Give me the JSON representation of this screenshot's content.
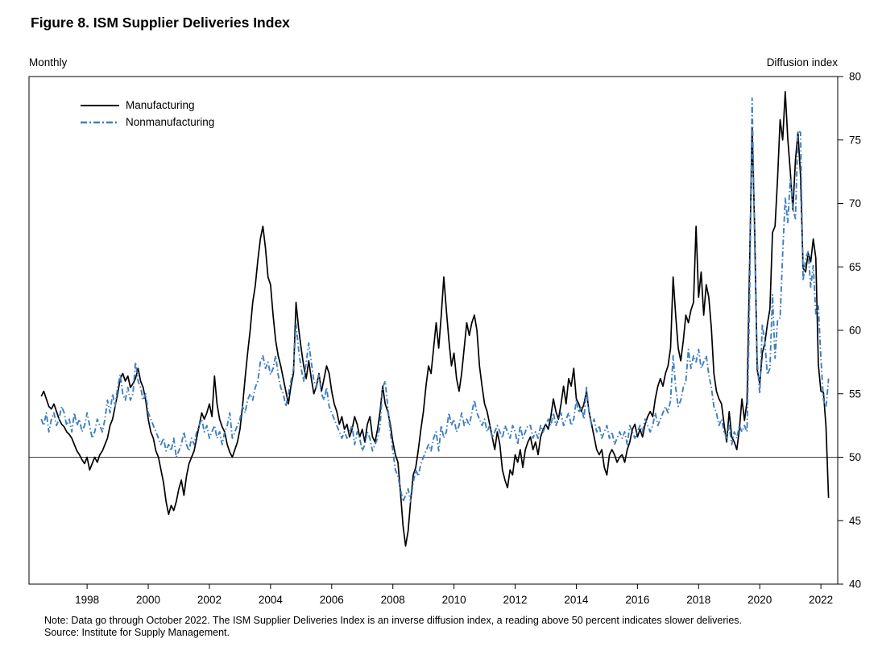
{
  "page": {
    "title": "Figure 8. ISM Supplier Deliveries Index",
    "frequency_label": "Monthly",
    "unit_label": "Diffusion index",
    "note": "Note: Data go through October 2022. The ISM Supplier Deliveries Index is an inverse diffusion index, a reading above 50 percent indicates slower deliveries.",
    "source": "Source: Institute for Supply Management."
  },
  "legend": {
    "manufacturing": "Manufacturing",
    "nonmanufacturing": "Nonmanufacturing"
  },
  "colors": {
    "manufacturing": "#000000",
    "nonmanufacturing": "#3f7fbf",
    "reference_line": "#000000",
    "axis": "#000000"
  },
  "chart_data": {
    "type": "line",
    "title": "Figure 8. ISM Supplier Deliveries Index",
    "frequency": "Monthly",
    "ylabel": "Diffusion index",
    "ylim": [
      40,
      80
    ],
    "y_ticks": [
      40,
      45,
      50,
      55,
      60,
      65,
      70,
      75,
      80
    ],
    "reference_line_y": 50,
    "grid": false,
    "legend_position": "top-left",
    "x_start": {
      "year": 1997,
      "month": 1
    },
    "x_end": {
      "year": 2022,
      "month": 10
    },
    "x_tick_labels": [
      "1998",
      "2000",
      "2002",
      "2004",
      "2006",
      "2008",
      "2010",
      "2012",
      "2014",
      "2016",
      "2018",
      "2020",
      "2022"
    ],
    "series": [
      {
        "name": "Manufacturing",
        "style": "solid",
        "color": "#000000",
        "values": [
          54.8,
          55.2,
          54.6,
          54.0,
          53.8,
          54.2,
          53.6,
          53.0,
          52.6,
          52.4,
          52.0,
          51.8,
          51.5,
          51.0,
          50.5,
          50.2,
          49.8,
          49.5,
          50.0,
          49.0,
          49.5,
          50.0,
          49.6,
          50.2,
          50.5,
          51.0,
          51.5,
          52.5,
          53.0,
          54.0,
          55.0,
          56.2,
          56.6,
          56.0,
          56.4,
          55.5,
          55.8,
          56.2,
          57.0,
          56.0,
          55.5,
          54.5,
          53.0,
          52.0,
          51.5,
          50.5,
          50.0,
          49.0,
          48.0,
          46.5,
          45.5,
          46.2,
          45.8,
          46.5,
          47.5,
          48.2,
          47.0,
          48.5,
          49.5,
          50.0,
          50.5,
          51.5,
          52.5,
          53.5,
          53.0,
          53.5,
          54.2,
          53.2,
          56.4,
          54.2,
          53.0,
          52.4,
          52.0,
          51.0,
          50.4,
          50.0,
          50.6,
          51.2,
          52.2,
          54.0,
          56.2,
          58.2,
          60.0,
          62.2,
          63.5,
          65.5,
          67.2,
          68.2,
          66.5,
          64.2,
          63.6,
          61.2,
          59.2,
          58.0,
          57.2,
          56.2,
          55.2,
          54.2,
          55.6,
          56.6,
          62.2,
          60.2,
          58.6,
          57.2,
          56.2,
          57.6,
          56.2,
          55.0,
          55.6,
          56.6,
          55.2,
          56.2,
          57.2,
          56.6,
          55.2,
          54.2,
          53.6,
          52.6,
          53.2,
          52.2,
          52.6,
          51.6,
          52.2,
          53.2,
          52.6,
          51.6,
          52.2,
          51.2,
          52.6,
          53.2,
          51.6,
          51.2,
          52.2,
          53.6,
          55.6,
          54.2,
          53.6,
          52.6,
          51.2,
          50.2,
          49.6,
          47.2,
          44.6,
          43.0,
          44.2,
          46.6,
          48.6,
          49.2,
          50.6,
          52.2,
          53.6,
          55.6,
          57.2,
          56.6,
          58.6,
          60.6,
          58.6,
          61.2,
          64.2,
          61.6,
          59.2,
          57.2,
          58.2,
          56.2,
          55.2,
          56.6,
          58.6,
          60.6,
          59.6,
          60.6,
          61.2,
          60.0,
          57.2,
          55.6,
          54.2,
          53.6,
          52.6,
          51.6,
          50.6,
          52.0,
          51.0,
          49.0,
          48.2,
          47.6,
          49.0,
          48.6,
          50.2,
          49.6,
          50.6,
          49.2,
          50.6,
          51.2,
          51.6,
          50.6,
          51.2,
          50.2,
          51.6,
          52.2,
          52.6,
          52.2,
          53.2,
          54.6,
          53.6,
          53.0,
          54.2,
          55.6,
          54.2,
          56.2,
          55.6,
          57.0,
          54.6,
          54.2,
          53.6,
          54.2,
          55.2,
          53.6,
          52.6,
          51.6,
          50.6,
          50.2,
          50.6,
          49.2,
          48.6,
          50.2,
          50.6,
          50.2,
          49.6,
          50.0,
          50.2,
          49.6,
          50.6,
          51.2,
          52.2,
          52.6,
          51.6,
          52.2,
          51.6,
          52.6,
          53.2,
          53.6,
          53.2,
          54.6,
          55.6,
          56.2,
          55.6,
          56.6,
          57.2,
          58.6,
          64.2,
          61.2,
          58.6,
          57.6,
          59.2,
          61.2,
          60.6,
          61.6,
          62.2,
          68.2,
          62.6,
          64.6,
          61.2,
          63.6,
          62.6,
          60.2,
          56.6,
          55.2,
          54.6,
          54.2,
          52.6,
          51.2,
          53.6,
          51.6,
          51.2,
          50.6,
          52.2,
          54.6,
          52.9,
          54.4,
          65.0,
          76.0,
          68.0,
          56.9,
          55.8,
          58.2,
          59.0,
          60.5,
          61.7,
          67.7,
          68.2,
          72.0,
          76.6,
          75.0,
          78.8,
          75.1,
          72.5,
          69.5,
          73.4,
          75.6,
          72.2,
          64.9,
          64.6,
          66.1,
          65.4,
          67.2,
          65.7,
          57.3,
          55.2,
          55.1,
          52.4,
          46.8
        ]
      },
      {
        "name": "Nonmanufacturing",
        "style": "dash-dot",
        "color": "#3f7fbf",
        "values": [
          53.0,
          52.5,
          53.5,
          52.0,
          53.0,
          53.5,
          52.5,
          53.0,
          54.0,
          53.5,
          52.5,
          53.0,
          52.0,
          53.5,
          52.5,
          53.0,
          52.0,
          52.5,
          53.5,
          52.5,
          51.5,
          52.0,
          53.0,
          52.5,
          52.0,
          53.0,
          54.5,
          53.5,
          55.0,
          54.0,
          55.5,
          56.5,
          55.0,
          54.5,
          55.5,
          54.5,
          55.0,
          57.5,
          56.0,
          55.5,
          54.5,
          55.0,
          53.5,
          53.0,
          52.5,
          52.0,
          51.5,
          51.0,
          51.5,
          50.5,
          51.0,
          50.5,
          51.5,
          50.0,
          50.5,
          51.0,
          52.0,
          51.0,
          50.5,
          51.5,
          51.0,
          52.0,
          52.5,
          53.0,
          52.0,
          52.5,
          51.5,
          52.0,
          52.5,
          51.5,
          52.0,
          51.0,
          52.0,
          52.5,
          53.5,
          51.5,
          52.0,
          52.5,
          53.0,
          54.0,
          53.5,
          54.5,
          55.0,
          54.5,
          55.5,
          56.0,
          57.5,
          58.0,
          57.0,
          57.5,
          56.5,
          57.0,
          58.0,
          56.5,
          55.5,
          55.0,
          54.0,
          55.0,
          56.0,
          57.0,
          60.5,
          58.5,
          57.0,
          56.0,
          57.5,
          59.0,
          57.5,
          56.0,
          55.5,
          56.5,
          55.0,
          54.5,
          55.5,
          54.0,
          53.5,
          53.0,
          52.5,
          52.0,
          51.5,
          52.0,
          51.5,
          52.0,
          52.5,
          51.0,
          52.0,
          51.5,
          50.5,
          51.0,
          52.0,
          51.5,
          50.5,
          51.0,
          51.5,
          52.5,
          55.5,
          56.0,
          54.0,
          52.0,
          50.5,
          49.0,
          48.5,
          47.5,
          46.5,
          47.0,
          47.5,
          46.5,
          48.0,
          49.0,
          48.5,
          49.5,
          50.0,
          50.5,
          51.0,
          50.5,
          51.5,
          52.0,
          50.5,
          52.5,
          51.5,
          52.0,
          53.5,
          52.5,
          53.0,
          52.0,
          52.5,
          53.5,
          52.5,
          53.0,
          52.5,
          53.5,
          54.5,
          53.5,
          53.0,
          52.5,
          53.0,
          52.0,
          52.5,
          51.5,
          52.0,
          52.5,
          52.0,
          51.5,
          52.5,
          52.0,
          51.5,
          52.5,
          52.0,
          51.0,
          52.5,
          51.5,
          52.0,
          52.5,
          52.5,
          51.5,
          52.0,
          51.5,
          52.5,
          52.0,
          52.5,
          53.0,
          52.5,
          53.5,
          52.5,
          53.0,
          53.5,
          52.5,
          53.0,
          53.5,
          52.5,
          53.0,
          54.5,
          53.5,
          54.0,
          53.0,
          55.5,
          53.5,
          52.5,
          53.0,
          52.0,
          52.5,
          51.5,
          52.0,
          52.5,
          51.5,
          52.0,
          51.0,
          51.5,
          52.0,
          51.5,
          52.0,
          51.0,
          52.5,
          52.0,
          51.5,
          52.0,
          52.5,
          52.0,
          53.0,
          52.5,
          52.0,
          52.5,
          53.5,
          52.5,
          53.0,
          53.5,
          54.0,
          53.5,
          54.5,
          58.0,
          55.5,
          54.0,
          54.5,
          55.5,
          56.0,
          58.5,
          57.0,
          58.0,
          57.5,
          58.5,
          57.0,
          57.5,
          58.0,
          56.5,
          55.5,
          54.0,
          53.5,
          52.5,
          53.0,
          52.0,
          51.5,
          52.5,
          51.0,
          52.0,
          51.5,
          52.5,
          52.0,
          52.5,
          52.0,
          62.1,
          78.3,
          67.0,
          57.5,
          55.0,
          60.5,
          59.0,
          56.5,
          57.0,
          62.8,
          57.8,
          60.8,
          61.0,
          66.1,
          70.4,
          68.5,
          72.0,
          69.6,
          68.8,
          75.7,
          75.6,
          63.9,
          65.7,
          66.2,
          63.4,
          65.1,
          61.3,
          61.9,
          57.8,
          54.5,
          53.9,
          56.2
        ]
      }
    ]
  }
}
